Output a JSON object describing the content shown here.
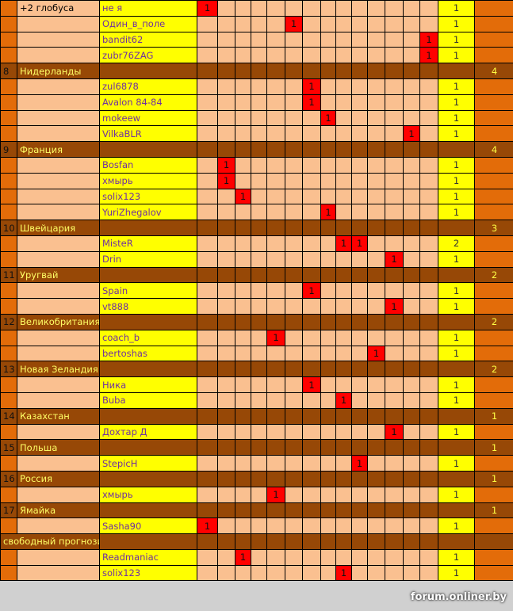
{
  "grid_columns": 14,
  "colors": {
    "player_name": "#7030a0",
    "country_row": "#974806",
    "mark": "#ff0000",
    "name_cell": "#ffff00",
    "empty_cell": "#fac090",
    "side": "#e36c09"
  },
  "rows": [
    {
      "type": "player",
      "label": "+2 глобуса",
      "name": "не я",
      "marks": [
        0
      ],
      "total": "1"
    },
    {
      "type": "player",
      "name": "Один_в_поле",
      "marks": [
        5
      ],
      "total": "1"
    },
    {
      "type": "player",
      "name": "bandit62",
      "marks": [
        13
      ],
      "total": "1"
    },
    {
      "type": "player",
      "name": "zubr76ZAG",
      "marks": [
        13
      ],
      "total": "1"
    },
    {
      "type": "country",
      "num": "8",
      "name": "Нидерланды",
      "count": "4"
    },
    {
      "type": "player",
      "name": "zul6878",
      "marks": [
        6
      ],
      "total": "1"
    },
    {
      "type": "player",
      "name": "Avalon 84-84",
      "marks": [
        6
      ],
      "total": "1"
    },
    {
      "type": "player",
      "name": "mokeew",
      "marks": [
        7
      ],
      "total": "1"
    },
    {
      "type": "player",
      "name": "VilkaBLR",
      "marks": [
        12
      ],
      "total": "1"
    },
    {
      "type": "country",
      "num": "9",
      "name": "Франция",
      "count": "4"
    },
    {
      "type": "player",
      "name": "Bosfan",
      "marks": [
        1
      ],
      "total": "1"
    },
    {
      "type": "player",
      "name": "хмырь",
      "marks": [
        1
      ],
      "total": "1"
    },
    {
      "type": "player",
      "name": "solix123",
      "marks": [
        2
      ],
      "total": "1"
    },
    {
      "type": "player",
      "name": "YuriZhegalov",
      "marks": [
        7
      ],
      "total": "1"
    },
    {
      "type": "country",
      "num": "10",
      "name": "Швейцария",
      "count": "3"
    },
    {
      "type": "player",
      "name": "MisteR",
      "marks": [
        8,
        9
      ],
      "total": "2"
    },
    {
      "type": "player",
      "name": "Drin",
      "marks": [
        11
      ],
      "total": "1"
    },
    {
      "type": "country",
      "num": "11",
      "name": "Уругвай",
      "count": "2"
    },
    {
      "type": "player",
      "name": "Spain",
      "marks": [
        6
      ],
      "total": "1"
    },
    {
      "type": "player",
      "name": "vt888",
      "marks": [
        11
      ],
      "total": "1"
    },
    {
      "type": "country",
      "num": "12",
      "name": "Великобритания",
      "count": "2"
    },
    {
      "type": "player",
      "name": "coach_b",
      "marks": [
        4
      ],
      "total": "1"
    },
    {
      "type": "player",
      "name": "bertoshas",
      "marks": [
        10
      ],
      "total": "1"
    },
    {
      "type": "country",
      "num": "13",
      "name": "Новая Зеландия",
      "count": "2"
    },
    {
      "type": "player",
      "name": "Ника",
      "marks": [
        6
      ],
      "total": "1"
    },
    {
      "type": "player",
      "name": "Buba",
      "marks": [
        8
      ],
      "total": "1"
    },
    {
      "type": "country",
      "num": "14",
      "name": "Казахстан",
      "count": "1"
    },
    {
      "type": "player",
      "name": "Дохтар Д",
      "marks": [
        11
      ],
      "total": "1"
    },
    {
      "type": "country",
      "num": "15",
      "name": "Польша",
      "count": "1"
    },
    {
      "type": "player",
      "name": "StepicH",
      "marks": [
        9
      ],
      "total": "1"
    },
    {
      "type": "country",
      "num": "16",
      "name": "Россия",
      "count": "1"
    },
    {
      "type": "player",
      "name": "хмырь",
      "marks": [
        4
      ],
      "total": "1"
    },
    {
      "type": "country",
      "num": "17",
      "name": "Ямайка",
      "count": "1"
    },
    {
      "type": "player",
      "name": "Sasha90",
      "marks": [
        0
      ],
      "total": "1"
    },
    {
      "type": "country",
      "num": "",
      "name": "свободный прогнозист",
      "count": "",
      "merged": true
    },
    {
      "type": "player",
      "name": "Readmaniac",
      "marks": [
        2
      ],
      "total": "1"
    },
    {
      "type": "player",
      "name": "solix123",
      "marks": [
        8
      ],
      "total": "1"
    }
  ],
  "mark_value": "1",
  "watermark": "forum.onliner.by"
}
